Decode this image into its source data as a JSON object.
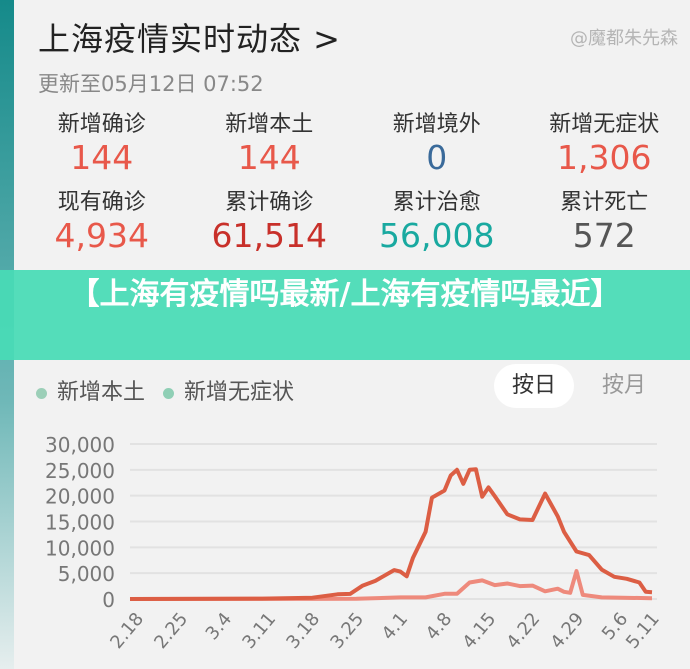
{
  "header": {
    "title": "上海疫情实时动态 >",
    "updated": "更新至05月12日 07:52"
  },
  "stats": [
    {
      "label": "新增确诊",
      "value": "144",
      "color": "#e8584a"
    },
    {
      "label": "新增本土",
      "value": "144",
      "color": "#e8584a"
    },
    {
      "label": "新增境外",
      "value": "0",
      "color": "#3a6a9a"
    },
    {
      "label": "新增无症状",
      "value": "1,306",
      "color": "#e8584a"
    },
    {
      "label": "现有确诊",
      "value": "4,934",
      "color": "#e8584a"
    },
    {
      "label": "累计确诊",
      "value": "61,514",
      "color": "#c8302a"
    },
    {
      "label": "累计治愈",
      "value": "56,008",
      "color": "#19a9a0"
    },
    {
      "label": "累计死亡",
      "value": "572",
      "color": "#555555"
    }
  ],
  "banner": {
    "text": "【上海有疫情吗最新/上海有疫情吗最近】"
  },
  "toggle": {
    "day": "按日",
    "month": "按月"
  },
  "watermark": "@魔都朱先森",
  "chart_data": {
    "type": "line",
    "legend_placement": "top-left",
    "grid": true,
    "ylim": [
      0,
      30000
    ],
    "yticks": [
      "0",
      "5,000",
      "10,000",
      "15,000",
      "20,000",
      "25,000",
      "30,000"
    ],
    "xticks": [
      "2.18",
      "2.25",
      "3.4",
      "3.11",
      "3.18",
      "3.25",
      "4.1",
      "4.8",
      "4.15",
      "4.22",
      "4.29",
      "5.6",
      "5.11"
    ],
    "series": [
      {
        "name": "新增本土",
        "color": "#ee8a7c",
        "legend_color": "#9ccfb8",
        "points": [
          [
            "2.17",
            0
          ],
          [
            "3.18",
            10
          ],
          [
            "3.25",
            50
          ],
          [
            "4.1",
            300
          ],
          [
            "4.5",
            300
          ],
          [
            "4.8",
            1000
          ],
          [
            "4.10",
            1000
          ],
          [
            "4.12",
            3200
          ],
          [
            "4.14",
            3600
          ],
          [
            "4.16",
            2700
          ],
          [
            "4.18",
            3000
          ],
          [
            "4.20",
            2500
          ],
          [
            "4.22",
            2600
          ],
          [
            "4.24",
            1500
          ],
          [
            "4.26",
            2000
          ],
          [
            "4.27",
            1400
          ],
          [
            "4.28",
            1200
          ],
          [
            "4.29",
            5400
          ],
          [
            "4.30",
            800
          ],
          [
            "5.3",
            300
          ],
          [
            "5.11",
            150
          ]
        ]
      },
      {
        "name": "新增无症状",
        "color": "#dc5e44",
        "legend_color": "#8fcfb5",
        "points": [
          [
            "2.17",
            0
          ],
          [
            "3.10",
            70
          ],
          [
            "3.18",
            260
          ],
          [
            "3.22",
            900
          ],
          [
            "3.24",
            980
          ],
          [
            "3.26",
            2600
          ],
          [
            "3.28",
            3500
          ],
          [
            "3.31",
            5600
          ],
          [
            "4.1",
            5300
          ],
          [
            "4.2",
            4400
          ],
          [
            "4.3",
            8000
          ],
          [
            "4.5",
            13000
          ],
          [
            "4.6",
            19600
          ],
          [
            "4.8",
            21000
          ],
          [
            "4.9",
            23900
          ],
          [
            "4.10",
            25000
          ],
          [
            "4.11",
            22300
          ],
          [
            "4.12",
            25000
          ],
          [
            "4.13",
            25100
          ],
          [
            "4.14",
            19800
          ],
          [
            "4.15",
            21600
          ],
          [
            "4.16",
            19900
          ],
          [
            "4.18",
            16400
          ],
          [
            "4.20",
            15400
          ],
          [
            "4.22",
            15300
          ],
          [
            "4.24",
            20400
          ],
          [
            "4.26",
            16000
          ],
          [
            "4.27",
            13000
          ],
          [
            "4.29",
            9200
          ],
          [
            "5.1",
            8500
          ],
          [
            "5.3",
            5700
          ],
          [
            "5.5",
            4300
          ],
          [
            "5.7",
            3900
          ],
          [
            "5.9",
            3200
          ],
          [
            "5.10",
            1400
          ],
          [
            "5.11",
            1300
          ]
        ]
      }
    ]
  }
}
